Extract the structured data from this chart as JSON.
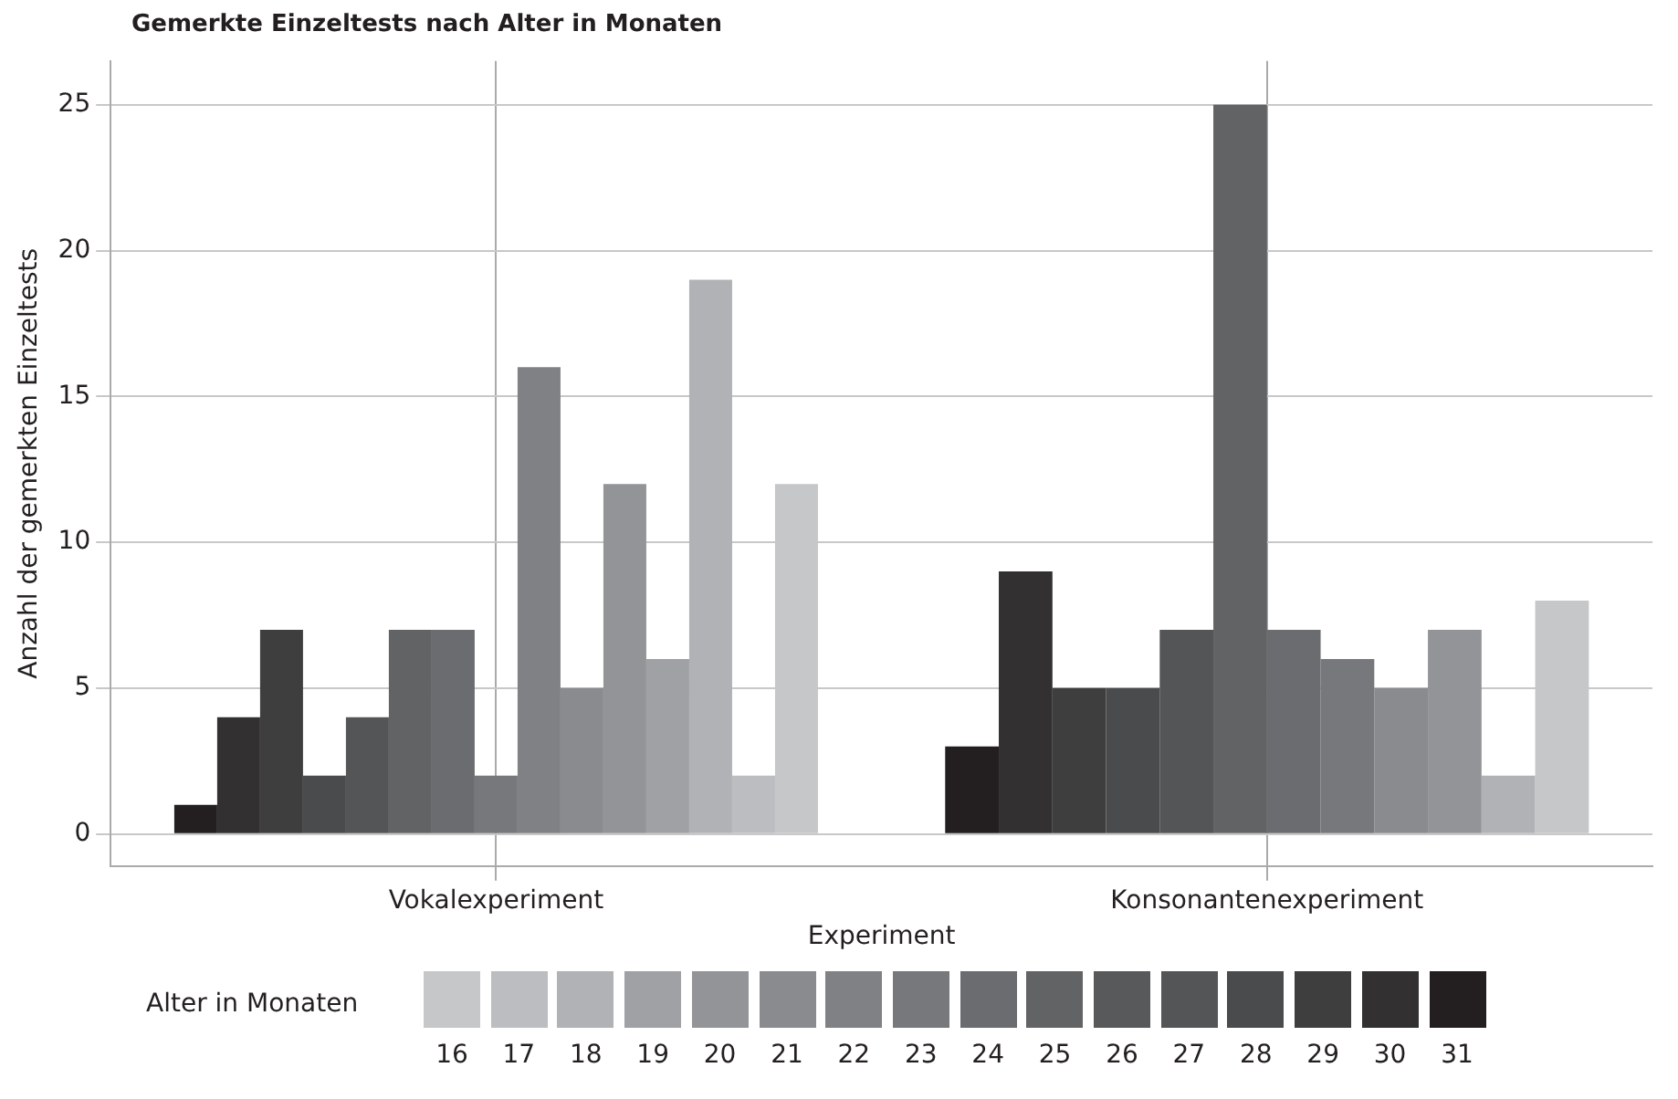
{
  "chart_data": {
    "type": "bar",
    "title": "Gemerkte Einzeltests nach Alter in Monaten",
    "xlabel": "Experiment",
    "ylabel": "Anzahl der gemerkten Einzeltests",
    "legend_title": "Alter in Monaten",
    "legend": "bottom",
    "grid": true,
    "categories": [
      "Vokalexperiment",
      "Konsonantenexperiment"
    ],
    "ylim": [
      -1.1,
      26.5
    ],
    "yticks": [
      0,
      5,
      10,
      15,
      20,
      25
    ],
    "series": [
      {
        "name": "31",
        "color": "#231f20",
        "values": [
          1,
          3
        ]
      },
      {
        "name": "30",
        "color": "#323031",
        "values": [
          4,
          9
        ]
      },
      {
        "name": "29",
        "color": "#3e3e3e",
        "values": [
          7,
          5
        ]
      },
      {
        "name": "28",
        "color": "#4a4b4d",
        "values": [
          2,
          5
        ]
      },
      {
        "name": "27",
        "color": "#545557",
        "values": [
          4,
          7
        ]
      },
      {
        "name": "26",
        "color": "#58595b",
        "values": [
          null,
          null
        ]
      },
      {
        "name": "25",
        "color": "#626365",
        "values": [
          7,
          25
        ]
      },
      {
        "name": "24",
        "color": "#6b6c6f",
        "values": [
          7,
          7
        ]
      },
      {
        "name": "23",
        "color": "#77787b",
        "values": [
          2,
          6
        ]
      },
      {
        "name": "22",
        "color": "#808184",
        "values": [
          16,
          null
        ]
      },
      {
        "name": "21",
        "color": "#8a8b8e",
        "values": [
          5,
          5
        ]
      },
      {
        "name": "20",
        "color": "#939497",
        "values": [
          12,
          7
        ]
      },
      {
        "name": "19",
        "color": "#a0a1a4",
        "values": [
          6,
          null
        ]
      },
      {
        "name": "18",
        "color": "#b1b2b5",
        "values": [
          19,
          2
        ]
      },
      {
        "name": "17",
        "color": "#bcbdc0",
        "values": [
          2,
          null
        ]
      },
      {
        "name": "16",
        "color": "#c6c7c9",
        "values": [
          12,
          8
        ]
      }
    ]
  }
}
